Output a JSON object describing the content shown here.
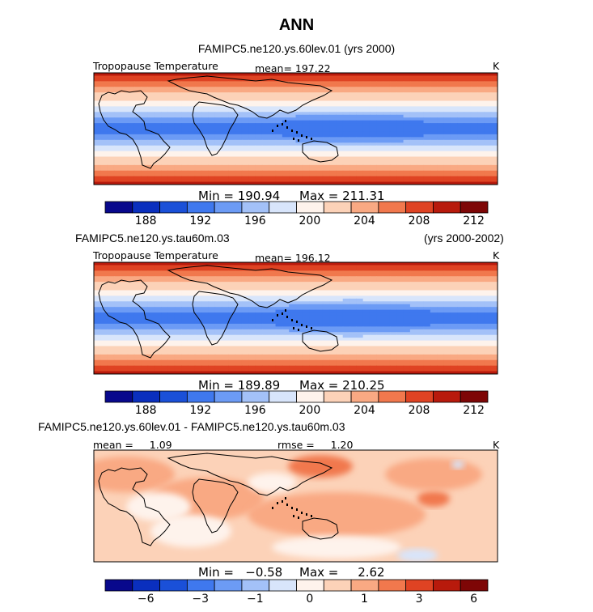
{
  "title": "ANN",
  "palettes": {
    "abs": [
      "#08088c",
      "#0a2fbe",
      "#1a50d8",
      "#3f78ee",
      "#6c9bf5",
      "#a3c1f8",
      "#d8e5fb",
      "#fef3ec",
      "#fcd2b8",
      "#f9a983",
      "#f1784d",
      "#df4323",
      "#b81a0c",
      "#7e0606"
    ],
    "diff": [
      "#08088c",
      "#0a2fbe",
      "#1a50d8",
      "#3f78ee",
      "#6c9bf5",
      "#a3c1f8",
      "#d8e5fb",
      "#fef3ec",
      "#fcd2b8",
      "#f9a983",
      "#f1784d",
      "#df4323",
      "#b81a0c",
      "#7e0606"
    ]
  },
  "panels": [
    {
      "header_left": "FAMIPC5.ne120.ys.60lev.01 (yrs 2000)",
      "header_right": "",
      "field_label": "Tropopause Temperature",
      "mean_label": "mean= 197.22",
      "rmse_label": "",
      "units": "K",
      "min_label": "Min = 190.94",
      "max_label": "Max = 211.31",
      "kind": "abs"
    },
    {
      "header_left": "FAMIPC5.ne120.ys.tau60m.03",
      "header_right": "(yrs 2000-2002)",
      "field_label": "Tropopause Temperature",
      "mean_label": "mean= 196.12",
      "rmse_label": "",
      "units": "K",
      "min_label": "Min = 189.89",
      "max_label": "Max = 210.25",
      "kind": "abs"
    },
    {
      "header_left": "FAMIPC5.ne120.ys.60lev.01 - FAMIPC5.ne120.ys.tau60m.03",
      "header_right": "",
      "field_label": "",
      "mean_label": "mean =     1.09",
      "rmse_label": "rmse =     1.20",
      "units": "K",
      "min_label": "Min =   −0.58",
      "max_label": "Max =     2.62",
      "kind": "diff"
    }
  ],
  "chart_data": [
    {
      "type": "heatmap",
      "title": "FAMIPC5.ne120.ys.60lev.01 (yrs 2000)",
      "variable": "Tropopause Temperature",
      "units": "K",
      "mean": 197.22,
      "min": 190.94,
      "max": 211.31,
      "colorbar_ticks": [
        "188",
        "192",
        "196",
        "200",
        "204",
        "208",
        "212"
      ],
      "colorbar_levels": [
        186,
        188,
        190,
        192,
        194,
        196,
        198,
        200,
        202,
        204,
        206,
        208,
        210,
        212
      ]
    },
    {
      "type": "heatmap",
      "title": "FAMIPC5.ne120.ys.tau60m.03 (yrs 2000-2002)",
      "variable": "Tropopause Temperature",
      "units": "K",
      "mean": 196.12,
      "min": 189.89,
      "max": 210.25,
      "colorbar_ticks": [
        "188",
        "192",
        "196",
        "200",
        "204",
        "208",
        "212"
      ],
      "colorbar_levels": [
        186,
        188,
        190,
        192,
        194,
        196,
        198,
        200,
        202,
        204,
        206,
        208,
        210,
        212
      ]
    },
    {
      "type": "heatmap",
      "title": "FAMIPC5.ne120.ys.60lev.01 - FAMIPC5.ne120.ys.tau60m.03",
      "units": "K",
      "mean": 1.09,
      "rmse": 1.2,
      "min": -0.58,
      "max": 2.62,
      "colorbar_ticks": [
        "−6",
        "−3",
        "−1",
        "0",
        "1",
        "3",
        "6"
      ],
      "colorbar_levels": [
        -8,
        -6,
        -4,
        -3,
        -2,
        -1,
        -0.5,
        0,
        0.5,
        1,
        2,
        3,
        4,
        6
      ]
    }
  ]
}
